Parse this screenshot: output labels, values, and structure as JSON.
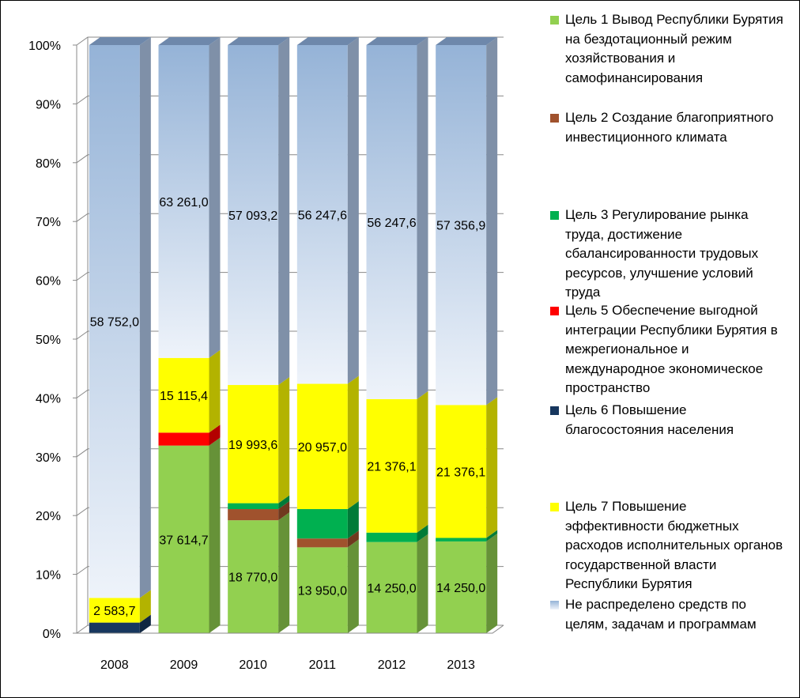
{
  "chart_data": {
    "type": "bar",
    "stacked": "percent",
    "style": "3d-column",
    "categories": [
      "2008",
      "2009",
      "2010",
      "2011",
      "2012",
      "2013"
    ],
    "ylim": [
      0,
      100
    ],
    "yticks": [
      "0%",
      "10%",
      "20%",
      "30%",
      "40%",
      "50%",
      "60%",
      "70%",
      "80%",
      "90%",
      "100%"
    ],
    "grid": true,
    "legend_position": "right",
    "series": [
      {
        "name": "Цель 6 Повышение благосостояния населения",
        "color": "#17375E",
        "percents": [
          1.8,
          0,
          0,
          0,
          0,
          0
        ],
        "labels": [
          "",
          "",
          "",
          "",
          "",
          ""
        ]
      },
      {
        "name": "Цель 1 Вывод Республики Бурятия на бездотационный режим хозяйствования и самофинансирования",
        "color": "#92D050",
        "percents": [
          0,
          31.9,
          19.2,
          14.6,
          15.5,
          15.6
        ],
        "labels": [
          "",
          "37 614,7",
          "18 770,0",
          "13 950,0",
          "14 250,0",
          "14 250,0"
        ]
      },
      {
        "name": "Цель 2 Создание благоприятного инвестиционного климата",
        "color": "#A0522D",
        "percents": [
          0,
          0,
          1.9,
          1.5,
          0,
          0
        ],
        "labels": [
          "",
          "",
          "",
          "",
          "",
          ""
        ]
      },
      {
        "name": "Цель 3 Регулирование рынка труда, достижение сбалансированности трудовых ресурсов, улучшение условий труда",
        "color": "#00B050",
        "percents": [
          0,
          0,
          1.0,
          5.0,
          1.6,
          0.6
        ],
        "labels": [
          "",
          "",
          "",
          "",
          "",
          ""
        ]
      },
      {
        "name": "Цель 5 Обеспечение выгодной интеграции Республики Бурятия в межрегиональное и международное экономическое пространство",
        "color": "#FF0000",
        "percents": [
          0,
          2.2,
          0,
          0,
          0,
          0
        ],
        "labels": [
          "",
          "",
          "",
          "",
          "",
          ""
        ]
      },
      {
        "name": "Цель 7 Повышение эффективности бюджетных расходов исполнительных органов государственной власти Республики Бурятия",
        "color": "#FFFF00",
        "percents": [
          4.2,
          12.7,
          20.1,
          21.3,
          22.7,
          22.6
        ],
        "labels": [
          "2 583,7",
          "15 115,4",
          "19 993,6",
          "20 957,0",
          "21 376,1",
          "21 376,1"
        ]
      },
      {
        "name": "Не распределено средств по целям, задачам и программам",
        "color": "#95B3D7",
        "percents": [
          94.0,
          53.2,
          57.8,
          57.6,
          60.2,
          61.2
        ],
        "labels": [
          "58 752,0",
          "63 261,0",
          "57 093,2",
          "56 247,6",
          "56 247,6",
          "57 356,9"
        ]
      }
    ],
    "legend_order": [
      1,
      2,
      3,
      4,
      0,
      5,
      6
    ]
  }
}
